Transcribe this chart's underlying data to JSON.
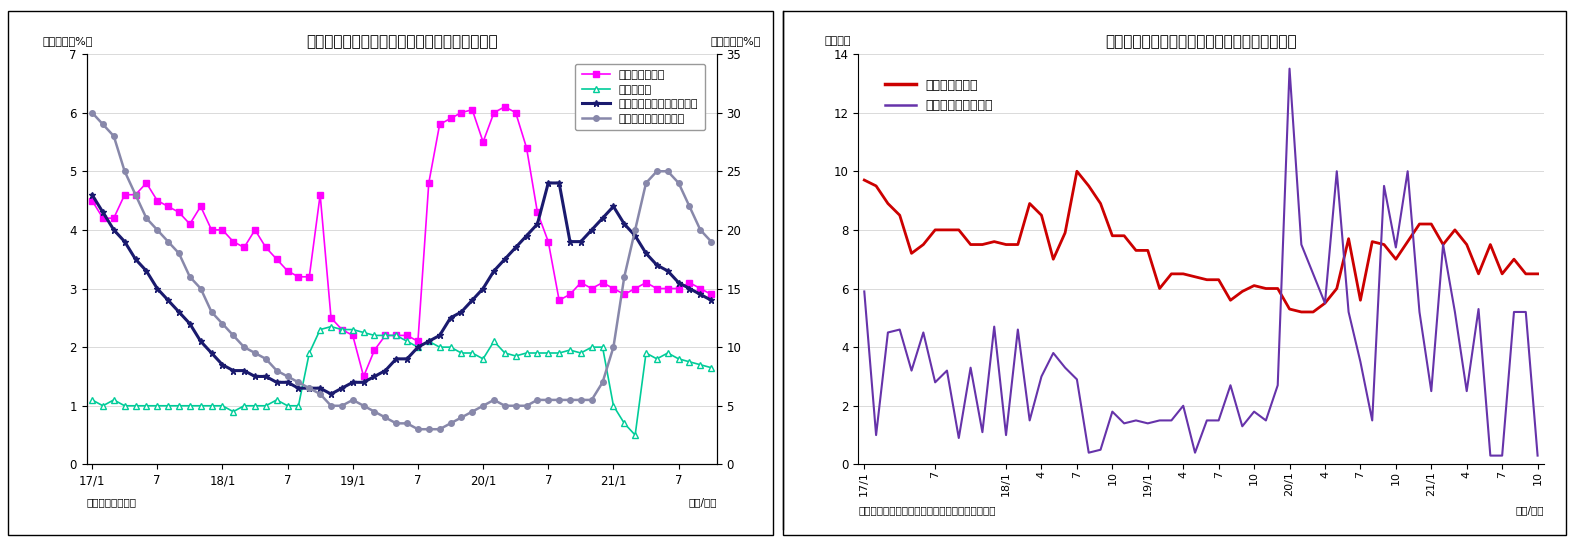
{
  "chart7": {
    "title": "（図表７）　マネタリーベースと内訳（平残）",
    "ylabel_left": "（前年比、%）",
    "ylabel_right": "（前年比、%）",
    "source": "（資料）日本銀行",
    "xlabel": "（年/月）",
    "ylim_left": [
      0,
      7
    ],
    "ylim_right": [
      0,
      35
    ],
    "yticks_left": [
      0,
      1,
      2,
      3,
      4,
      5,
      6,
      7
    ],
    "yticks_right": [
      0,
      5,
      10,
      15,
      20,
      25,
      30,
      35
    ],
    "xtick_positions": [
      0,
      6,
      12,
      18,
      24,
      30,
      36,
      42,
      48,
      54
    ],
    "xtick_labels": [
      "17/1",
      "7",
      "18/1",
      "7",
      "19/1",
      "7",
      "20/1",
      "7",
      "21/1",
      "7"
    ],
    "nikken_color": "#ff00ff",
    "kahei_color": "#00cc99",
    "monetary_color": "#1a1a6e",
    "nichigin_color": "#8888aa",
    "nikken": [
      4.5,
      4.2,
      4.2,
      4.6,
      4.6,
      4.8,
      4.5,
      4.4,
      4.3,
      4.1,
      4.4,
      4.0,
      4.0,
      3.8,
      3.7,
      4.0,
      3.7,
      3.5,
      3.3,
      3.2,
      3.2,
      4.6,
      2.5,
      2.3,
      2.2,
      1.5,
      1.95,
      2.2,
      2.2,
      2.2,
      2.1,
      4.8,
      5.8,
      5.9,
      6.0,
      6.05,
      5.5,
      6.0,
      6.1,
      6.0,
      5.4,
      4.3,
      3.8,
      2.8,
      2.9,
      3.1,
      3.0,
      3.1,
      3.0,
      2.9,
      3.0,
      3.1,
      3.0,
      3.0,
      3.0,
      3.1,
      3.0,
      2.9
    ],
    "kahei": [
      1.1,
      1.0,
      1.1,
      1.0,
      1.0,
      1.0,
      1.0,
      1.0,
      1.0,
      1.0,
      1.0,
      1.0,
      1.0,
      0.9,
      1.0,
      1.0,
      1.0,
      1.1,
      1.0,
      1.0,
      1.9,
      2.3,
      2.35,
      2.3,
      2.3,
      2.25,
      2.2,
      2.2,
      2.2,
      2.1,
      2.0,
      2.1,
      2.0,
      2.0,
      1.9,
      1.9,
      1.8,
      2.1,
      1.9,
      1.85,
      1.9,
      1.9,
      1.9,
      1.9,
      1.95,
      1.9,
      2.0,
      2.0,
      1.0,
      0.7,
      0.5,
      1.9,
      1.8,
      1.9,
      1.8,
      1.75,
      1.7,
      1.65
    ],
    "monetary": [
      23.0,
      21.5,
      20.0,
      19.0,
      17.5,
      16.5,
      15.0,
      14.0,
      13.0,
      12.0,
      10.5,
      9.5,
      8.5,
      8.0,
      8.0,
      7.5,
      7.5,
      7.0,
      7.0,
      6.5,
      6.5,
      6.5,
      6.0,
      6.5,
      7.0,
      7.0,
      7.5,
      8.0,
      9.0,
      9.0,
      10.0,
      10.5,
      11.0,
      12.5,
      13.0,
      14.0,
      15.0,
      16.5,
      17.5,
      18.5,
      19.5,
      20.5,
      24.0,
      24.0,
      19.0,
      19.0,
      20.0,
      21.0,
      22.0,
      20.5,
      19.5,
      18.0,
      17.0,
      16.5,
      15.5,
      15.0,
      14.5,
      14.0
    ],
    "nichigin": [
      30.0,
      29.0,
      28.0,
      25.0,
      23.0,
      21.0,
      20.0,
      19.0,
      18.0,
      16.0,
      15.0,
      13.0,
      12.0,
      11.0,
      10.0,
      9.5,
      9.0,
      8.0,
      7.5,
      7.0,
      6.5,
      6.0,
      5.0,
      5.0,
      5.5,
      5.0,
      4.5,
      4.0,
      3.5,
      3.5,
      3.0,
      3.0,
      3.0,
      3.5,
      4.0,
      4.5,
      5.0,
      5.5,
      5.0,
      5.0,
      5.0,
      5.5,
      5.5,
      5.5,
      5.5,
      5.5,
      5.5,
      7.0,
      10.0,
      16.0,
      20.0,
      24.0,
      25.0,
      25.0,
      24.0,
      22.0,
      20.0,
      19.0
    ]
  },
  "chart8": {
    "title": "（図表８）日銀の国債買入れ額（月次フロー）",
    "ylabel_left": "（兆円）",
    "xlabel": "（年/月）",
    "source": "（資料）日銀データよりニッセイ基礎研究所作成",
    "ylim": [
      0,
      14
    ],
    "yticks": [
      0,
      2,
      4,
      6,
      8,
      10,
      12,
      14
    ],
    "xtick_positions": [
      0,
      6,
      12,
      15,
      18,
      21,
      24,
      27,
      30,
      33,
      36,
      39,
      42,
      45,
      48,
      51,
      54,
      57
    ],
    "xtick_labels": [
      "17/1",
      "7",
      "18/1",
      "4",
      "7",
      "10",
      "19/1",
      "4",
      "7",
      "10",
      "20/1",
      "4",
      "7",
      "10",
      "21/1",
      "4",
      "7",
      "10"
    ],
    "choki_color": "#cc0000",
    "tansho_color": "#6633aa",
    "choki": [
      9.7,
      9.5,
      8.9,
      8.5,
      7.2,
      7.5,
      8.0,
      8.0,
      8.0,
      7.5,
      7.5,
      7.6,
      7.5,
      7.5,
      8.9,
      8.5,
      7.0,
      7.9,
      10.0,
      9.5,
      8.9,
      7.8,
      7.8,
      7.3,
      7.3,
      6.0,
      6.5,
      6.5,
      6.4,
      6.3,
      6.3,
      5.6,
      5.9,
      6.1,
      6.0,
      6.0,
      5.3,
      5.2,
      5.2,
      5.5,
      6.0,
      7.7,
      5.6,
      7.6,
      7.5,
      7.0,
      7.6,
      8.2,
      8.2,
      7.5,
      8.0,
      7.5,
      6.5,
      7.5,
      6.5,
      7.0,
      6.5,
      6.5
    ],
    "tansho": [
      5.9,
      1.0,
      4.5,
      4.6,
      3.2,
      4.5,
      2.8,
      3.2,
      0.9,
      3.3,
      1.1,
      4.7,
      1.0,
      4.6,
      1.5,
      3.0,
      3.8,
      3.3,
      2.9,
      0.4,
      0.5,
      1.8,
      1.4,
      1.5,
      1.4,
      1.5,
      1.5,
      2.0,
      0.4,
      1.5,
      1.5,
      2.7,
      1.3,
      1.8,
      1.5,
      2.7,
      13.5,
      7.5,
      6.5,
      5.5,
      10.0,
      5.2,
      3.5,
      1.5,
      9.5,
      7.4,
      10.0,
      5.2,
      2.5,
      7.5,
      5.2,
      2.5,
      5.3,
      0.3,
      0.3,
      5.2,
      5.2,
      0.3
    ]
  }
}
